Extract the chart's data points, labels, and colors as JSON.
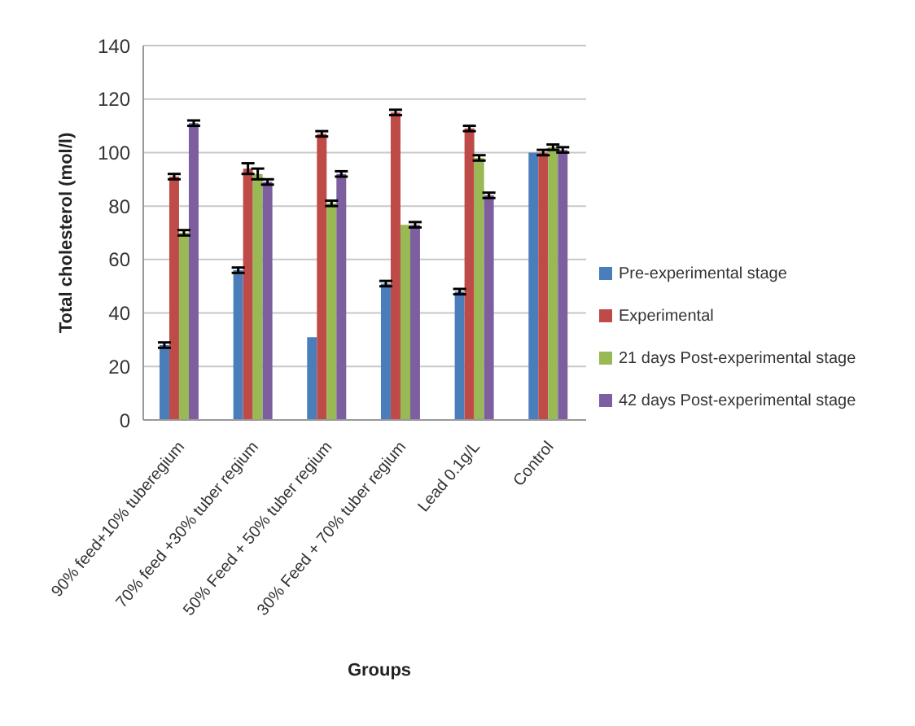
{
  "chart_data": {
    "type": "bar",
    "xlabel": "Groups",
    "ylabel": "Total cholesterol (mol/l)",
    "categories": [
      "90% feed+10% tuberegium",
      "70% feed +30% tuber regium",
      "50% Feed + 50% tuber regium",
      "30% Feed + 70% tuber regium",
      "Lead 0.1g/L",
      "Control"
    ],
    "series": [
      {
        "name": "Pre-experimental stage",
        "color": "#4a7ebb",
        "values": [
          28,
          56,
          31,
          51,
          48,
          100
        ],
        "errors": [
          1,
          1,
          null,
          1,
          1,
          null
        ]
      },
      {
        "name": "Experimental",
        "color": "#be4b48",
        "values": [
          91,
          94,
          107,
          115,
          109,
          100
        ],
        "errors": [
          1,
          2,
          1,
          1,
          1,
          1
        ]
      },
      {
        "name": "21 days Post-experimental stage",
        "color": "#98b954",
        "values": [
          70,
          92,
          81,
          73,
          98,
          102
        ],
        "errors": [
          1,
          2,
          1,
          null,
          1,
          1
        ]
      },
      {
        "name": "42 days Post-experimental stage",
        "color": "#7d5fa0",
        "values": [
          111,
          89,
          92,
          73,
          84,
          101
        ],
        "errors": [
          1,
          1,
          1,
          1,
          1,
          1
        ]
      }
    ],
    "ylim": [
      0,
      140
    ],
    "yticks": [
      0,
      20,
      40,
      60,
      80,
      100,
      120,
      140
    ],
    "grid": "y",
    "legend": "right"
  }
}
